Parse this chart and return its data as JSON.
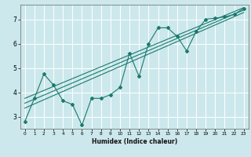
{
  "title": "",
  "xlabel": "Humidex (Indice chaleur)",
  "ylabel": "",
  "xlim": [
    -0.5,
    23.5
  ],
  "ylim": [
    2.5,
    7.6
  ],
  "yticks": [
    3,
    4,
    5,
    6,
    7
  ],
  "xticks": [
    0,
    1,
    2,
    3,
    4,
    5,
    6,
    7,
    8,
    9,
    10,
    11,
    12,
    13,
    14,
    15,
    16,
    17,
    18,
    19,
    20,
    21,
    22,
    23
  ],
  "bg_color": "#cce8ec",
  "line_color": "#1a7a6e",
  "grid_color": "#ffffff",
  "line1_x": [
    0,
    1,
    2,
    3,
    4,
    5,
    6,
    7,
    8,
    9,
    10,
    11,
    12,
    13,
    14,
    15,
    16,
    17,
    18,
    19,
    20,
    21,
    22,
    23
  ],
  "line1_y": [
    2.8,
    3.75,
    4.75,
    4.3,
    3.65,
    3.5,
    2.65,
    3.75,
    3.75,
    3.9,
    4.2,
    5.6,
    4.65,
    6.0,
    6.65,
    6.65,
    6.3,
    5.7,
    6.5,
    7.0,
    7.05,
    7.1,
    7.2,
    7.45
  ],
  "line2_x": [
    0,
    23
  ],
  "line2_y": [
    3.55,
    7.38
  ],
  "line3_x": [
    0,
    23
  ],
  "line3_y": [
    3.75,
    7.48
  ],
  "line4_x": [
    0,
    23
  ],
  "line4_y": [
    3.35,
    7.28
  ]
}
